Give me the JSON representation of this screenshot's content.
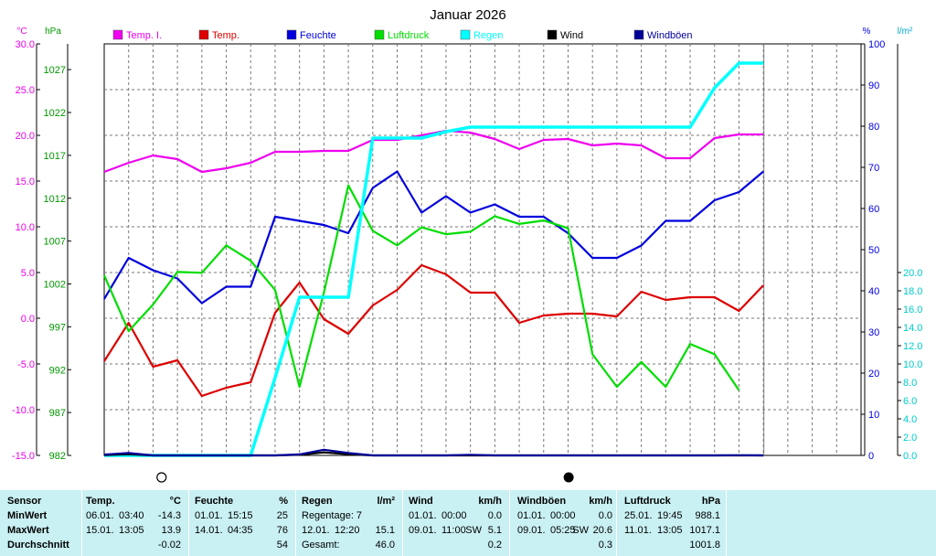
{
  "colors": {
    "temp_i": "#ee00ee",
    "temp": "#dd0000",
    "feuchte": "#0000dd",
    "luftdruck": "#00dd00",
    "regen": "#00ffff",
    "wind": "#000000",
    "windboeen": "#000099",
    "panel_bg": "#c9f0f3"
  },
  "chart_data": {
    "type": "line",
    "title": "Januar 2026",
    "axes": {
      "temp": {
        "unit": "°C",
        "min": -15,
        "max": 30,
        "ticks": [
          "30.0",
          "25.0",
          "20.0",
          "15.0",
          "10.0",
          "5.0",
          "0.0",
          "-5.0",
          "-10.0",
          "-15.0"
        ]
      },
      "pressure": {
        "unit": "hPa",
        "min": 982,
        "max": 1030,
        "ticks": [
          "1027",
          "1022",
          "1017",
          "1012",
          "1007",
          "1002",
          "997",
          "992",
          "987",
          "982"
        ]
      },
      "humidity": {
        "unit": "%",
        "min": 0,
        "max": 100,
        "ticks": [
          "100",
          "90",
          "80",
          "70",
          "60",
          "50",
          "40",
          "30",
          "20",
          "10",
          "0"
        ]
      },
      "rain": {
        "unit": "l/m²",
        "min": 0,
        "max": 45,
        "ticks": [
          "20.0",
          "18.0",
          "16.0",
          "14.0",
          "12.0",
          "10.0",
          "8.0",
          "6.0",
          "4.0",
          "2.0",
          "0.0"
        ]
      }
    },
    "x": [
      1,
      2,
      3,
      4,
      5,
      6,
      7,
      8,
      9,
      10,
      11,
      12,
      13,
      14,
      15,
      16,
      17,
      18,
      19,
      20,
      21,
      22,
      23,
      24,
      25,
      26,
      27,
      28,
      29,
      30,
      31
    ],
    "grid": true,
    "legend_position": "top",
    "series": [
      {
        "name": "Temp. I.",
        "axis": "temp",
        "color": "temp_i",
        "values": [
          16.0,
          17.0,
          17.8,
          17.4,
          16.0,
          16.4,
          17.0,
          18.2,
          18.2,
          18.3,
          18.3,
          19.5,
          19.5,
          20.0,
          20.5,
          20.3,
          19.6,
          18.5,
          19.5,
          19.6,
          18.9,
          19.1,
          18.9,
          17.5,
          17.5,
          19.7,
          20.1,
          20.1,
          null,
          null,
          null
        ]
      },
      {
        "name": "Temp.",
        "axis": "temp",
        "color": "temp",
        "values": [
          -4.7,
          -0.5,
          -5.3,
          -4.6,
          -8.5,
          -7.6,
          -7.0,
          0.6,
          3.9,
          -0.1,
          -1.7,
          1.4,
          3.1,
          5.8,
          4.8,
          2.8,
          2.8,
          -0.5,
          0.3,
          0.5,
          0.5,
          0.2,
          2.9,
          2.0,
          2.3,
          2.3,
          0.8,
          3.6,
          null,
          null,
          null
        ]
      },
      {
        "name": "Feuchte",
        "axis": "humidity",
        "color": "feuchte",
        "values": [
          38,
          48,
          45,
          43,
          37,
          41,
          41,
          58,
          57,
          56,
          54,
          65,
          69,
          59,
          63,
          59,
          61,
          58,
          58,
          54,
          48,
          48,
          51,
          57,
          57,
          62,
          64,
          69,
          null,
          null,
          null
        ]
      },
      {
        "name": "Luftdruck",
        "axis": "pressure",
        "color": "luftdruck",
        "values": [
          1003,
          996.5,
          999.6,
          1003.4,
          1003.3,
          1006.5,
          1004.7,
          1001.3,
          990,
          1001,
          1013.5,
          1008.2,
          1006.5,
          1008.6,
          1007.8,
          1008.1,
          1009.9,
          1009.0,
          1009.4,
          1008.5,
          993.8,
          990,
          992.9,
          990,
          995,
          993.8,
          989.6,
          null,
          null,
          null,
          null
        ]
      },
      {
        "name": "Regen",
        "axis": "rain",
        "color": "regen",
        "values": [
          0,
          0,
          0,
          0,
          0,
          0,
          0,
          8.5,
          17.3,
          17.3,
          17.3,
          34.7,
          34.7,
          34.7,
          35.4,
          35.9,
          35.9,
          35.9,
          35.9,
          35.9,
          35.9,
          35.9,
          35.9,
          35.9,
          35.9,
          40.2,
          42.9,
          42.9,
          null,
          null,
          null
        ]
      },
      {
        "name": "Wind",
        "axis": "windspeed",
        "color": "wind",
        "values": [
          0.2,
          0.6,
          0,
          0,
          0,
          0,
          0,
          0,
          0.3,
          1.5,
          0.6,
          0,
          0,
          0,
          0,
          0,
          0,
          0,
          0,
          0,
          0,
          0,
          0,
          0,
          0,
          0,
          0,
          0,
          null,
          null,
          null
        ]
      },
      {
        "name": "Windböen",
        "axis": "windspeed",
        "color": "windboeen",
        "values": [
          0.4,
          1.2,
          0,
          0,
          0,
          0,
          0,
          0,
          0.5,
          2.8,
          1.2,
          0,
          0,
          0,
          0,
          0.3,
          0,
          0,
          0,
          0,
          0,
          0,
          0,
          0,
          0,
          0,
          0.1,
          0,
          null,
          null,
          null
        ]
      }
    ],
    "moon_phases": [
      {
        "day": 3,
        "phase": "full"
      },
      {
        "day": 19,
        "phase": "new"
      }
    ]
  },
  "table": {
    "row_labels": [
      "Sensor",
      "MinWert",
      "MaxWert",
      "Durchschnitt"
    ],
    "panels": [
      {
        "title": "Temp.",
        "unit": "°C",
        "min": {
          "date": "06.01.",
          "time": "03:40",
          "value": "-14.3"
        },
        "max": {
          "date": "15.01.",
          "time": "13:05",
          "value": "13.9"
        },
        "avg": {
          "label": "",
          "value": "-0.02"
        }
      },
      {
        "title": "Feuchte",
        "unit": "%",
        "min": {
          "date": "01.01.",
          "time": "15:15",
          "value": "25"
        },
        "max": {
          "date": "14.01.",
          "time": "04:35",
          "value": "76"
        },
        "avg": {
          "label": "",
          "value": "54"
        }
      },
      {
        "title": "Regen",
        "unit": "l/m²",
        "min": {
          "date": "Regentage: 7",
          "time": "",
          "value": ""
        },
        "max": {
          "date": "12.01.",
          "time": "12:20",
          "value": "15.1"
        },
        "avg": {
          "label": "Gesamt:",
          "value": "46.0"
        }
      },
      {
        "title": "Wind",
        "unit": "km/h",
        "min": {
          "date": "01.01.",
          "time": "00:00",
          "value": "0.0"
        },
        "max": {
          "date": "09.01.",
          "time": "11:00",
          "dir": "SW",
          "value": "5.1"
        },
        "avg": {
          "label": "",
          "value": "0.2"
        }
      },
      {
        "title": "Windböen",
        "unit": "km/h",
        "min": {
          "date": "01.01.",
          "time": "00:00",
          "value": "0.0"
        },
        "max": {
          "date": "09.01.",
          "time": "05:25",
          "dir": "SW",
          "value": "20.6"
        },
        "avg": {
          "label": "",
          "value": "0.3"
        }
      },
      {
        "title": "Luftdruck",
        "unit": "hPa",
        "min": {
          "date": "25.01.",
          "time": "19:45",
          "value": "988.1"
        },
        "max": {
          "date": "11.01.",
          "time": "13:05",
          "value": "1017.1"
        },
        "avg": {
          "label": "",
          "value": "1001.8"
        }
      }
    ]
  }
}
